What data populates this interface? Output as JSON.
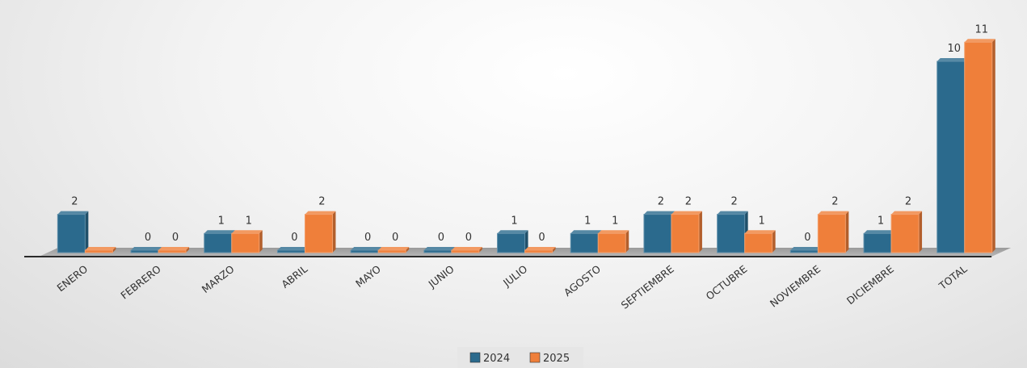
{
  "chart_data": {
    "type": "bar",
    "categories": [
      "ENERO",
      "FEBRERO",
      "MARZO",
      "ABRIL",
      "MAYO",
      "JUNIO",
      "JULIO",
      "AGOSTO",
      "SEPTIEMBRE",
      "OCTUBRE",
      "NOVIEMBRE",
      "DICIEMBRE",
      "TOTAL"
    ],
    "series": [
      {
        "name": "2024",
        "values": [
          2,
          0,
          1,
          0,
          0,
          0,
          1,
          1,
          2,
          2,
          0,
          1,
          10
        ]
      },
      {
        "name": "2025",
        "values": [
          0,
          0,
          1,
          2,
          0,
          0,
          0,
          1,
          2,
          1,
          2,
          2,
          11
        ]
      }
    ],
    "data_labels": {
      "2024": [
        "2",
        "0",
        "1",
        "0",
        "0",
        "0",
        "1",
        "1",
        "2",
        "2",
        "0",
        "1",
        "10"
      ],
      "2025": [
        "",
        "0",
        "1",
        "2",
        "0",
        "0",
        "0",
        "1",
        "2",
        "1",
        "2",
        "2",
        "11"
      ]
    },
    "title": "",
    "xlabel": "",
    "ylabel": "",
    "legend_position": "bottom-center",
    "colors": {
      "2024": "#2b6a8d",
      "2025": "#ef7f3a"
    }
  }
}
